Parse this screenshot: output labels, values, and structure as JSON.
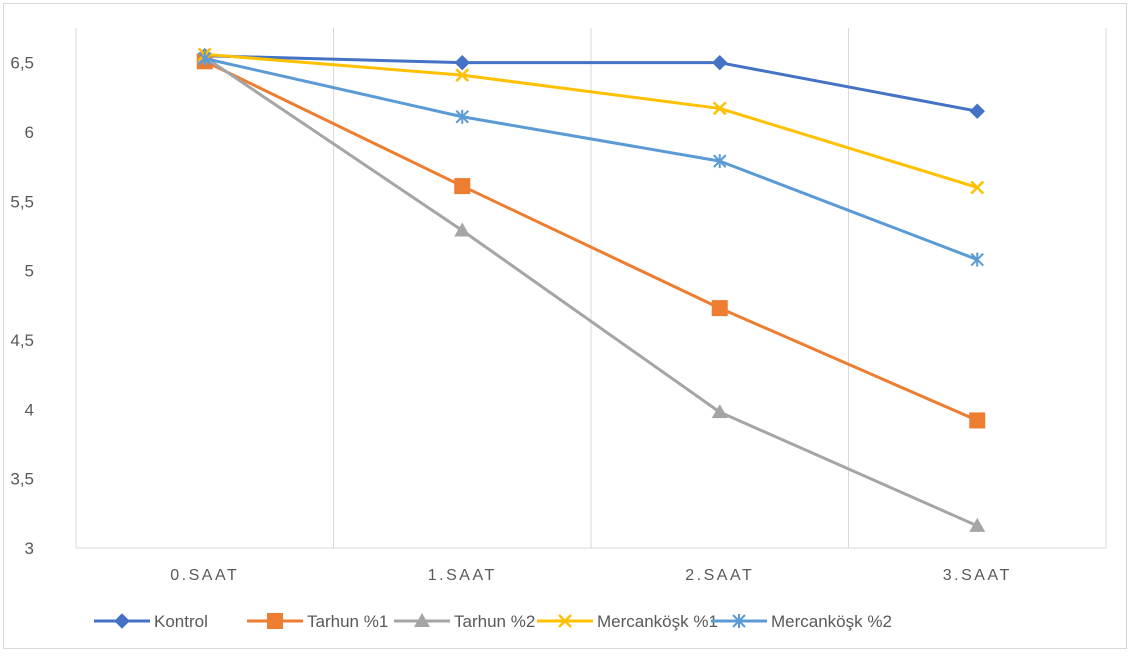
{
  "chart_data": {
    "type": "line",
    "title": "",
    "xlabel": "",
    "ylabel": "",
    "categories": [
      "0.SAAT",
      "1.SAAT",
      "2.SAAT",
      "3.SAAT"
    ],
    "yticks": [
      "3",
      "3,5",
      "4",
      "4,5",
      "5",
      "5,5",
      "6",
      "6,5"
    ],
    "ylim": [
      3,
      6.75
    ],
    "grid": "vertical",
    "legend_position": "bottom",
    "series": [
      {
        "name": "Kontrol",
        "values": [
          6.55,
          6.5,
          6.5,
          6.15
        ],
        "color": "#4472C4",
        "marker": "diamond"
      },
      {
        "name": "Tarhun %1",
        "values": [
          6.51,
          5.61,
          4.73,
          3.92
        ],
        "color": "#ED7D31",
        "marker": "square"
      },
      {
        "name": "Tarhun %2",
        "values": [
          6.54,
          5.29,
          3.98,
          3.16
        ],
        "color": "#A5A5A5",
        "marker": "triangle"
      },
      {
        "name": "Mercanköşk %1",
        "values": [
          6.56,
          6.41,
          6.17,
          5.6
        ],
        "color": "#FFC000",
        "marker": "x"
      },
      {
        "name": "Mercanköşk %2",
        "values": [
          6.53,
          6.11,
          5.79,
          5.08
        ],
        "color": "#5B9BD5",
        "marker": "star"
      }
    ]
  }
}
